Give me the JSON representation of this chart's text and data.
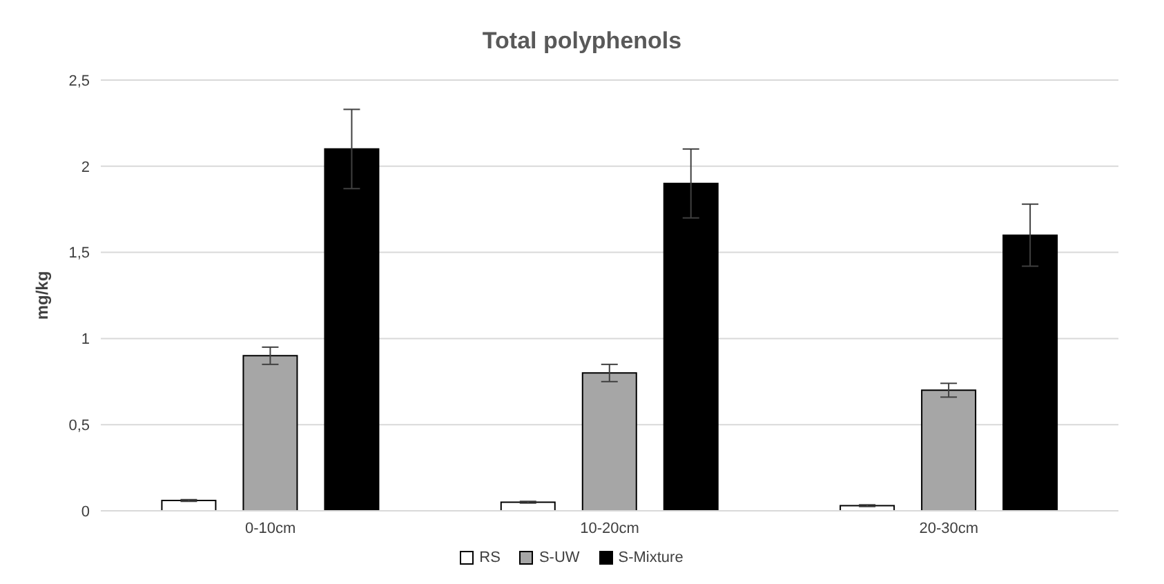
{
  "chart_data": {
    "type": "bar",
    "title": "Total polyphenols",
    "ylabel": "mg/kg",
    "categories": [
      "0-10cm",
      "10-20cm",
      "20-30cm"
    ],
    "series": [
      {
        "name": "RS",
        "color": "#ffffff",
        "values": [
          0.06,
          0.05,
          0.03
        ],
        "errors": [
          0.005,
          0.005,
          0.005
        ]
      },
      {
        "name": "S-UW",
        "color": "#a6a6a6",
        "values": [
          0.9,
          0.8,
          0.7
        ],
        "errors": [
          0.05,
          0.05,
          0.04
        ]
      },
      {
        "name": "S-Mixture",
        "color": "#000000",
        "values": [
          2.1,
          1.9,
          1.6
        ],
        "errors": [
          0.23,
          0.2,
          0.18
        ]
      }
    ],
    "ylim": [
      0,
      2.5
    ],
    "yticks": [
      0,
      {
        "value": 0.5,
        "label": "0,5"
      },
      1,
      {
        "value": 1.5,
        "label": "1,5"
      },
      2,
      {
        "value": 2.5,
        "label": "2,5"
      }
    ],
    "grid": "y",
    "legend": "bottom"
  }
}
